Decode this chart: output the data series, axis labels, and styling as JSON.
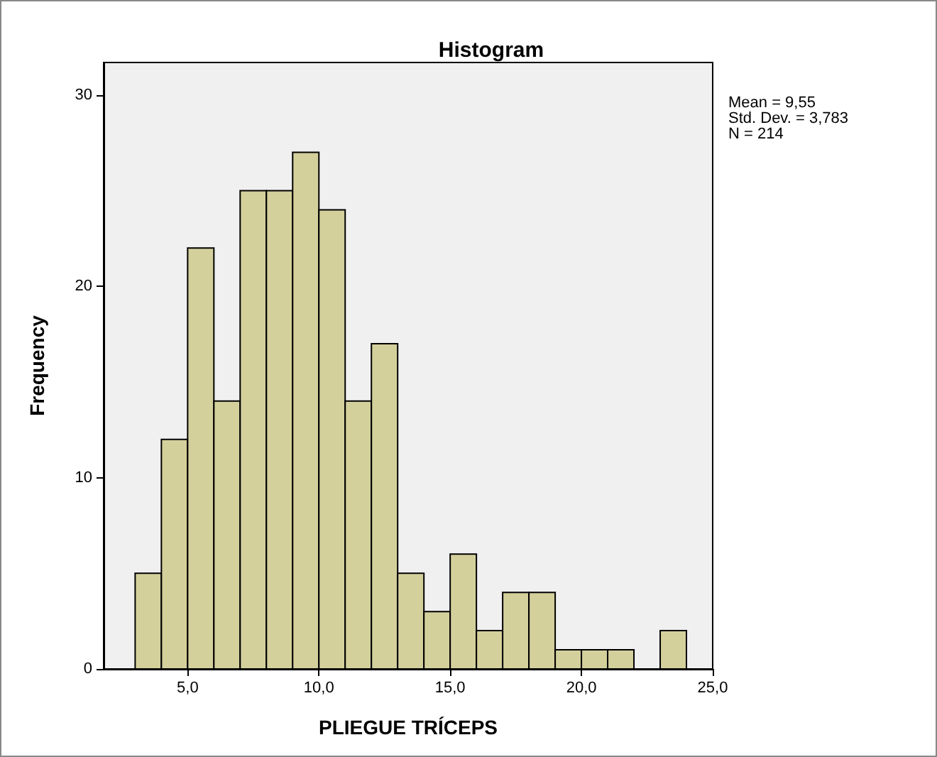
{
  "chart_data": {
    "type": "histogram",
    "title": "Histogram",
    "xlabel": "PLIEGUE TRÍCEPS",
    "ylabel": "Frequency",
    "annotations": [
      "Mean = 9,55",
      "Std. Dev. = 3,783",
      "N = 214"
    ],
    "bins": [
      3,
      4,
      5,
      6,
      7,
      8,
      9,
      10,
      11,
      12,
      13,
      14,
      15,
      16,
      17,
      18,
      19,
      20,
      21,
      22,
      23,
      24
    ],
    "values": [
      5,
      12,
      22,
      14,
      25,
      25,
      27,
      24,
      14,
      17,
      5,
      3,
      6,
      2,
      4,
      4,
      1,
      1,
      1,
      0,
      2
    ],
    "color": "#d4d09c",
    "xlim": [
      1.8,
      25
    ],
    "xticks": [
      {
        "value": 5,
        "label": "5,0"
      },
      {
        "value": 10,
        "label": "10,0"
      },
      {
        "value": 15,
        "label": "15,0"
      },
      {
        "value": 20,
        "label": "20,0"
      },
      {
        "value": 25,
        "label": "25,0"
      }
    ],
    "ylim": [
      0,
      31.7
    ],
    "yticks": [
      0,
      10,
      20,
      30
    ],
    "grid": false
  }
}
